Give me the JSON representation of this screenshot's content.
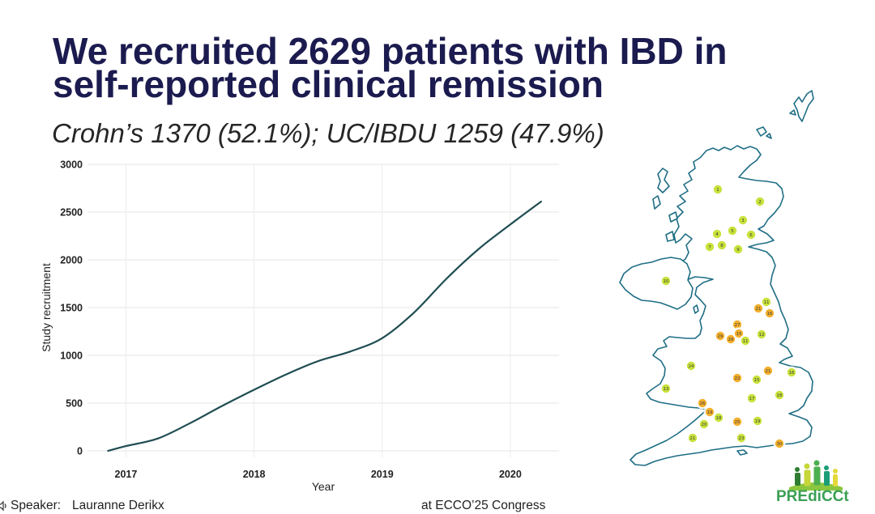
{
  "slide": {
    "title_line1": "We recruited 2629 patients with IBD in",
    "title_line2": "self-reported clinical remission",
    "subtitle": "Crohn’s 1370 (52.1%); UC/IBDU 1259 (47.9%)",
    "title_color": "#1b1b4f"
  },
  "chart_data": {
    "type": "line",
    "xlabel": "Year",
    "ylabel": "Study recruitment",
    "xlim": [
      2016.7,
      2020.38
    ],
    "ylim": [
      0,
      3000
    ],
    "x_ticks": [
      2017,
      2018,
      2019,
      2020
    ],
    "y_ticks": [
      0,
      500,
      1000,
      1500,
      2000,
      2500,
      3000
    ],
    "grid": true,
    "series": [
      {
        "name": "Study recruitment",
        "color": "#1f4d52",
        "x": [
          2016.86,
          2017.0,
          2017.25,
          2017.5,
          2017.75,
          2018.0,
          2018.25,
          2018.5,
          2018.75,
          2019.0,
          2019.25,
          2019.5,
          2019.75,
          2020.0,
          2020.24
        ],
        "y": [
          0,
          50,
          130,
          290,
          470,
          640,
          800,
          940,
          1040,
          1180,
          1450,
          1800,
          2110,
          2370,
          2610
        ]
      }
    ]
  },
  "map": {
    "icon": "uk-map-icon",
    "colors": {
      "green": "#c9e23b",
      "orange": "#f4b02c"
    },
    "sites": [
      {
        "label": "1",
        "type": "green"
      },
      {
        "label": "2",
        "type": "green"
      },
      {
        "label": "3",
        "type": "green"
      },
      {
        "label": "4",
        "type": "green"
      },
      {
        "label": "5",
        "type": "green"
      },
      {
        "label": "6",
        "type": "green"
      },
      {
        "label": "7",
        "type": "green"
      },
      {
        "label": "8",
        "type": "green"
      },
      {
        "label": "9",
        "type": "green"
      },
      {
        "label": "10",
        "type": "green"
      },
      {
        "label": "11",
        "type": "green"
      },
      {
        "label": "21",
        "type": "orange"
      },
      {
        "label": "16",
        "type": "orange"
      },
      {
        "label": "27",
        "type": "orange"
      },
      {
        "label": "29",
        "type": "orange"
      },
      {
        "label": "28",
        "type": "orange"
      },
      {
        "label": "15",
        "type": "orange"
      },
      {
        "label": "11",
        "type": "green"
      },
      {
        "label": "12",
        "type": "green"
      },
      {
        "label": "24",
        "type": "green"
      },
      {
        "label": "22",
        "type": "orange"
      },
      {
        "label": "15",
        "type": "green"
      },
      {
        "label": "21",
        "type": "orange"
      },
      {
        "label": "16",
        "type": "green"
      },
      {
        "label": "13",
        "type": "green"
      },
      {
        "label": "17",
        "type": "green"
      },
      {
        "label": "18",
        "type": "green"
      },
      {
        "label": "26",
        "type": "orange"
      },
      {
        "label": "19",
        "type": "orange"
      },
      {
        "label": "18",
        "type": "green"
      },
      {
        "label": "20",
        "type": "green"
      },
      {
        "label": "25",
        "type": "orange"
      },
      {
        "label": "19",
        "type": "green"
      },
      {
        "label": "21",
        "type": "green"
      },
      {
        "label": "23",
        "type": "green"
      },
      {
        "label": "30",
        "type": "orange"
      }
    ]
  },
  "footer": {
    "icon": "speaker-icon",
    "speaker_label": "Speaker:",
    "speaker_name": "Lauranne Derikx",
    "event": "at ECCO’25 Congress"
  },
  "logo": {
    "icon": "predicct-people-icon",
    "text": "PREdiCCt",
    "color": "#3aa055"
  }
}
